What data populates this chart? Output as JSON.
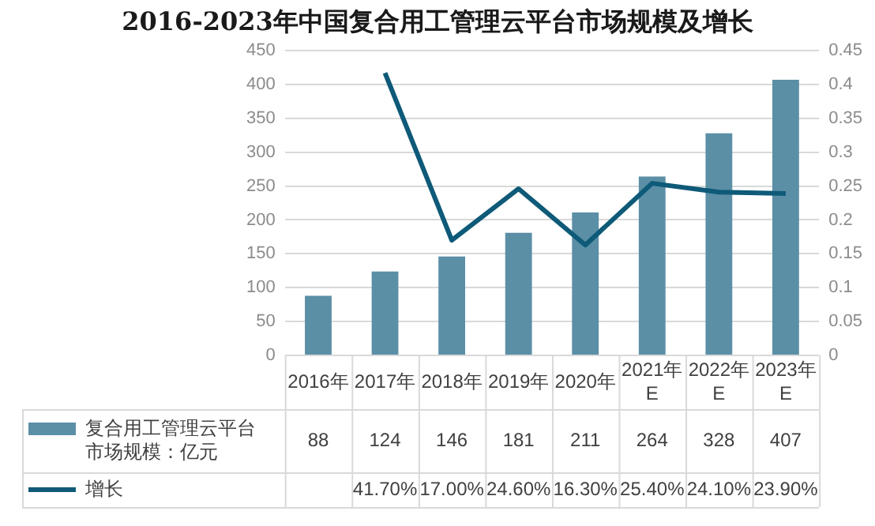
{
  "chart_data": {
    "type": "bar",
    "title": "2016-2023年中国复合用工管理云平台市场规模及增长",
    "categories": [
      "2016年",
      "2017年",
      "2018年",
      "2019年",
      "2020年",
      "2021年E",
      "2022年E",
      "2023年E"
    ],
    "series": [
      {
        "name": "复合用工管理云平台市场规模：亿元",
        "color": "#5b8fa6",
        "values": [
          88,
          124,
          146,
          181,
          211,
          264,
          328,
          407
        ],
        "value_labels": [
          "88",
          "124",
          "146",
          "181",
          "211",
          "264",
          "328",
          "407"
        ]
      },
      {
        "name": "增长",
        "type": "line",
        "axis": "y2",
        "color": "#0e5a78",
        "values": [
          null,
          0.417,
          0.17,
          0.246,
          0.163,
          0.254,
          0.241,
          0.239
        ],
        "value_labels": [
          null,
          "41.70%",
          "17.00%",
          "24.60%",
          "16.30%",
          "25.40%",
          "24.10%",
          "23.90%"
        ]
      }
    ],
    "ylim": [
      0,
      450
    ],
    "yticks": [
      0,
      50,
      100,
      150,
      200,
      250,
      300,
      350,
      400,
      450
    ],
    "y2lim": [
      0,
      0.45
    ],
    "y2ticks": [
      0,
      0.05,
      0.1,
      0.15,
      0.2,
      0.25,
      0.3,
      0.35,
      0.4,
      0.45
    ],
    "grid": "y",
    "legend": "bottom",
    "marker": "none"
  }
}
